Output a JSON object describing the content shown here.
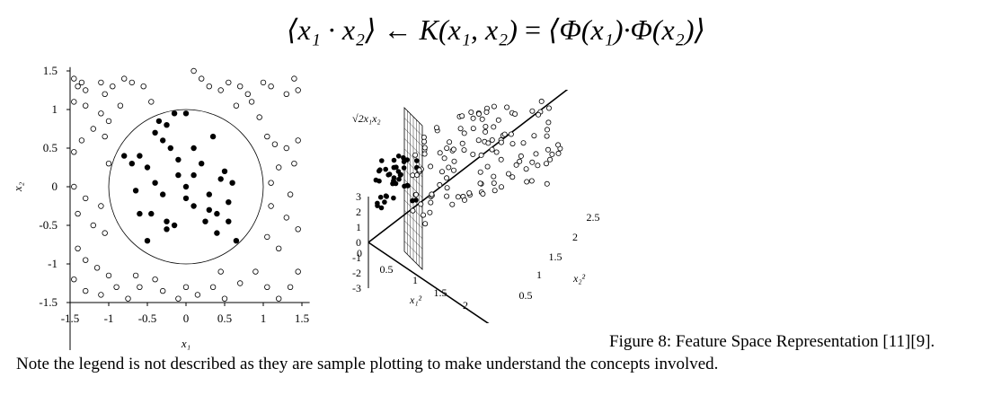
{
  "formula": {
    "lhs": "⟨x₁ · x₂⟩",
    "arrow": "←",
    "kernel": "K(x₁, x₂)",
    "equals": "=",
    "rhs": "⟨Φ(x₁)·Φ(x₂)⟩"
  },
  "caption": "Figure 8: Feature Space Representation [11][9].",
  "note": "Note the legend is not described as they are sample plotting to make understand the concepts involved.",
  "chart_data": [
    {
      "type": "scatter",
      "xlabel": "x₁",
      "ylabel": "x₂",
      "xlim": [
        -1.6,
        1.6
      ],
      "ylim": [
        -1.55,
        1.55
      ],
      "xticks": [
        "-1.5",
        "-1",
        "-0.5",
        "0",
        "0.5",
        "1",
        "1.5"
      ],
      "xtick_values": [
        -1.5,
        -1,
        -0.5,
        0,
        0.5,
        1,
        1.5
      ],
      "yticks": [
        "1.5",
        "1",
        "0.5",
        "0",
        "-0.5",
        "-1",
        "-1.5"
      ],
      "ytick_values": [
        1.5,
        1,
        0.5,
        0,
        -0.5,
        -1,
        -1.5
      ],
      "decision_boundary": {
        "shape": "circle",
        "center": [
          0,
          0
        ],
        "radius": 1.0
      },
      "series": [
        {
          "marker": "filled",
          "points": [
            [
              -0.7,
              0.3
            ],
            [
              -0.6,
              0.4
            ],
            [
              -0.5,
              0.25
            ],
            [
              -0.4,
              0.7
            ],
            [
              -0.35,
              0.85
            ],
            [
              -0.25,
              0.8
            ],
            [
              -0.15,
              0.95
            ],
            [
              0.0,
              0.95
            ],
            [
              -0.3,
              0.6
            ],
            [
              -0.2,
              0.5
            ],
            [
              -0.1,
              0.35
            ],
            [
              0.1,
              0.5
            ],
            [
              0.35,
              0.65
            ],
            [
              0.2,
              0.3
            ],
            [
              0.45,
              0.1
            ],
            [
              0.5,
              0.2
            ],
            [
              -0.1,
              0.15
            ],
            [
              0.0,
              0.0
            ],
            [
              0.3,
              -0.1
            ],
            [
              0.55,
              -0.2
            ],
            [
              0.6,
              0.05
            ],
            [
              -0.65,
              -0.05
            ],
            [
              -0.6,
              -0.35
            ],
            [
              -0.45,
              -0.35
            ],
            [
              -0.25,
              -0.45
            ],
            [
              -0.15,
              -0.5
            ],
            [
              -0.25,
              -0.55
            ],
            [
              0.1,
              -0.25
            ],
            [
              0.3,
              -0.3
            ],
            [
              0.25,
              -0.45
            ],
            [
              0.4,
              -0.35
            ],
            [
              0.55,
              -0.45
            ],
            [
              0.4,
              -0.6
            ],
            [
              0.65,
              -0.7
            ],
            [
              -0.5,
              -0.7
            ],
            [
              -0.3,
              -0.1
            ],
            [
              0.0,
              -0.15
            ],
            [
              -0.8,
              0.4
            ],
            [
              0.1,
              0.15
            ],
            [
              -0.4,
              0.05
            ]
          ]
        },
        {
          "marker": "hollow",
          "points": [
            [
              -1.45,
              1.4
            ],
            [
              -1.4,
              1.3
            ],
            [
              -1.35,
              1.35
            ],
            [
              -1.3,
              1.25
            ],
            [
              -1.1,
              1.35
            ],
            [
              -1.05,
              1.2
            ],
            [
              -0.95,
              1.3
            ],
            [
              -0.8,
              1.4
            ],
            [
              -0.7,
              1.35
            ],
            [
              -0.55,
              1.3
            ],
            [
              -0.45,
              1.1
            ],
            [
              0.1,
              1.5
            ],
            [
              0.2,
              1.4
            ],
            [
              0.3,
              1.3
            ],
            [
              0.45,
              1.25
            ],
            [
              0.55,
              1.35
            ],
            [
              0.7,
              1.3
            ],
            [
              0.8,
              1.2
            ],
            [
              0.85,
              1.1
            ],
            [
              1.0,
              1.35
            ],
            [
              1.1,
              1.3
            ],
            [
              1.3,
              1.2
            ],
            [
              1.4,
              1.4
            ],
            [
              1.45,
              1.25
            ],
            [
              -1.45,
              1.1
            ],
            [
              -1.3,
              1.05
            ],
            [
              -1.1,
              0.95
            ],
            [
              -1.2,
              0.75
            ],
            [
              -1.05,
              0.65
            ],
            [
              -1.35,
              0.6
            ],
            [
              -1.45,
              0.45
            ],
            [
              -1.0,
              0.3
            ],
            [
              1.05,
              0.65
            ],
            [
              1.15,
              0.55
            ],
            [
              1.3,
              0.5
            ],
            [
              1.45,
              0.6
            ],
            [
              1.4,
              0.3
            ],
            [
              1.2,
              0.25
            ],
            [
              1.1,
              0.05
            ],
            [
              1.35,
              -0.1
            ],
            [
              -1.45,
              0.0
            ],
            [
              -1.3,
              -0.15
            ],
            [
              -1.1,
              -0.25
            ],
            [
              -1.4,
              -0.35
            ],
            [
              -1.2,
              -0.5
            ],
            [
              -1.05,
              -0.6
            ],
            [
              1.1,
              -0.25
            ],
            [
              1.3,
              -0.4
            ],
            [
              1.45,
              -0.55
            ],
            [
              1.05,
              -0.65
            ],
            [
              1.2,
              -0.8
            ],
            [
              -1.4,
              -0.8
            ],
            [
              -1.3,
              -0.95
            ],
            [
              -1.15,
              -1.05
            ],
            [
              -1.0,
              -1.15
            ],
            [
              -1.45,
              -1.2
            ],
            [
              -1.3,
              -1.35
            ],
            [
              -1.1,
              -1.4
            ],
            [
              -0.9,
              -1.3
            ],
            [
              -0.75,
              -1.45
            ],
            [
              -0.6,
              -1.3
            ],
            [
              -0.4,
              -1.2
            ],
            [
              -0.3,
              -1.35
            ],
            [
              -0.1,
              -1.45
            ],
            [
              0.0,
              -1.3
            ],
            [
              0.15,
              -1.4
            ],
            [
              0.35,
              -1.3
            ],
            [
              0.5,
              -1.45
            ],
            [
              0.7,
              -1.25
            ],
            [
              0.9,
              -1.1
            ],
            [
              1.05,
              -1.3
            ],
            [
              1.2,
              -1.45
            ],
            [
              1.35,
              -1.3
            ],
            [
              1.45,
              -1.1
            ],
            [
              -0.65,
              -1.15
            ],
            [
              0.45,
              -1.1
            ],
            [
              -1.0,
              0.85
            ],
            [
              0.95,
              0.9
            ],
            [
              -0.85,
              1.05
            ],
            [
              0.65,
              1.05
            ]
          ]
        }
      ]
    },
    {
      "type": "scatter",
      "projection": "3d",
      "zlabel": "√2x₁x₂",
      "xlabel": "x₁²",
      "ylabel": "x₂²",
      "zticks": [
        "3",
        "2",
        "1",
        "0",
        "-1",
        "-2",
        "-3"
      ],
      "xticks": [
        "0",
        "0.5",
        "1",
        "1.5",
        "2"
      ],
      "yticks": [
        "0.5",
        "1",
        "1.5",
        "2",
        "2.5"
      ],
      "separating_plane": true
    }
  ]
}
